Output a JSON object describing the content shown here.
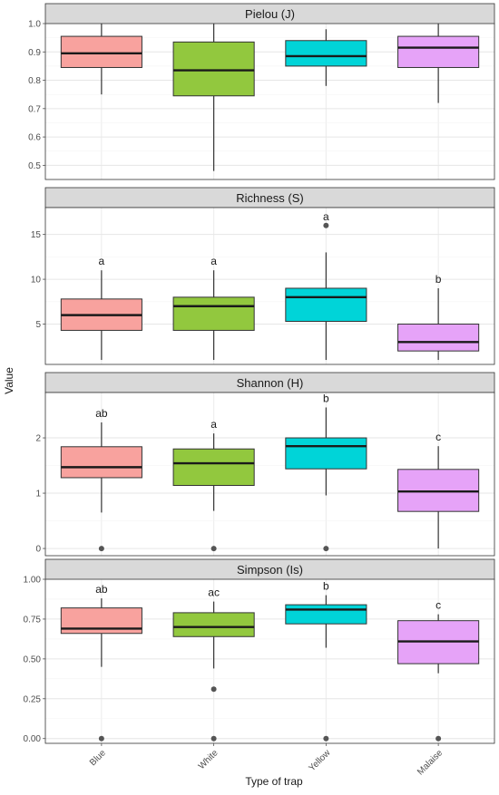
{
  "chart_data": {
    "type": "boxplot",
    "xlabel": "Type of trap",
    "ylabel": "Value",
    "categories": [
      "Blue",
      "White",
      "Yellow",
      "Malaise"
    ],
    "colors": [
      "#F8A29E",
      "#92C83E",
      "#00D4D8",
      "#E6A3F8"
    ],
    "grid": true,
    "panels": [
      {
        "title": "Pielou (J)",
        "ylim": [
          0.45,
          1.0
        ],
        "yticks": [
          0.5,
          0.6,
          0.7,
          0.8,
          0.9,
          1.0
        ],
        "tick_labels": [
          "0.5",
          "0.6",
          "0.7",
          "0.8",
          "0.9",
          "1.0"
        ],
        "boxes": [
          {
            "whisker_low": 0.75,
            "q1": 0.845,
            "median": 0.895,
            "q3": 0.955,
            "whisker_high": 1.0,
            "outliers": [],
            "letter": ""
          },
          {
            "whisker_low": 0.48,
            "q1": 0.745,
            "median": 0.835,
            "q3": 0.935,
            "whisker_high": 1.0,
            "outliers": [],
            "letter": ""
          },
          {
            "whisker_low": 0.78,
            "q1": 0.85,
            "median": 0.885,
            "q3": 0.94,
            "whisker_high": 0.98,
            "outliers": [],
            "letter": ""
          },
          {
            "whisker_low": 0.72,
            "q1": 0.845,
            "median": 0.915,
            "q3": 0.955,
            "whisker_high": 1.0,
            "outliers": [],
            "letter": ""
          }
        ]
      },
      {
        "title": "Richness (S)",
        "ylim": [
          0.5,
          18
        ],
        "yticks": [
          5,
          10,
          15
        ],
        "tick_labels": [
          "5",
          "10",
          "15"
        ],
        "boxes": [
          {
            "whisker_low": 1,
            "q1": 4.3,
            "median": 6,
            "q3": 7.8,
            "whisker_high": 11,
            "outliers": [],
            "letter": "a"
          },
          {
            "whisker_low": 1,
            "q1": 4.3,
            "median": 7,
            "q3": 8,
            "whisker_high": 11,
            "outliers": [],
            "letter": "a"
          },
          {
            "whisker_low": 1,
            "q1": 5.3,
            "median": 8,
            "q3": 9,
            "whisker_high": 13,
            "outliers": [
              16
            ],
            "letter": "a"
          },
          {
            "whisker_low": 1,
            "q1": 2,
            "median": 3,
            "q3": 5,
            "whisker_high": 9,
            "outliers": [],
            "letter": "b"
          }
        ]
      },
      {
        "title": "Shannon (H)",
        "ylim": [
          -0.13,
          2.82
        ],
        "yticks": [
          0,
          1,
          2
        ],
        "tick_labels": [
          "0",
          "1",
          "2"
        ],
        "boxes": [
          {
            "whisker_low": 0.65,
            "q1": 1.28,
            "median": 1.47,
            "q3": 1.84,
            "whisker_high": 2.28,
            "outliers": [
              0
            ],
            "letter": "ab"
          },
          {
            "whisker_low": 0.68,
            "q1": 1.14,
            "median": 1.54,
            "q3": 1.8,
            "whisker_high": 2.08,
            "outliers": [
              0
            ],
            "letter": "a"
          },
          {
            "whisker_low": 0.96,
            "q1": 1.44,
            "median": 1.85,
            "q3": 2.0,
            "whisker_high": 2.55,
            "outliers": [
              0
            ],
            "letter": "b"
          },
          {
            "whisker_low": 0.0,
            "q1": 0.67,
            "median": 1.03,
            "q3": 1.43,
            "whisker_high": 1.85,
            "outliers": [],
            "letter": "c"
          }
        ]
      },
      {
        "title": "Simpson (Is)",
        "ylim": [
          -0.03,
          1.0
        ],
        "yticks": [
          0.0,
          0.25,
          0.5,
          0.75,
          1.0
        ],
        "tick_labels": [
          "0.00",
          "0.25",
          "0.50",
          "0.75",
          "1.00"
        ],
        "boxes": [
          {
            "whisker_low": 0.45,
            "q1": 0.66,
            "median": 0.69,
            "q3": 0.82,
            "whisker_high": 0.88,
            "outliers": [
              0.0
            ],
            "letter": "ab"
          },
          {
            "whisker_low": 0.44,
            "q1": 0.64,
            "median": 0.7,
            "q3": 0.79,
            "whisker_high": 0.86,
            "outliers": [
              0.31,
              0.0
            ],
            "letter": "ac"
          },
          {
            "whisker_low": 0.57,
            "q1": 0.72,
            "median": 0.81,
            "q3": 0.84,
            "whisker_high": 0.9,
            "outliers": [
              0.0
            ],
            "letter": "b"
          },
          {
            "whisker_low": 0.41,
            "q1": 0.47,
            "median": 0.61,
            "q3": 0.74,
            "whisker_high": 0.78,
            "outliers": [
              0.0
            ],
            "letter": "c"
          }
        ]
      }
    ]
  }
}
